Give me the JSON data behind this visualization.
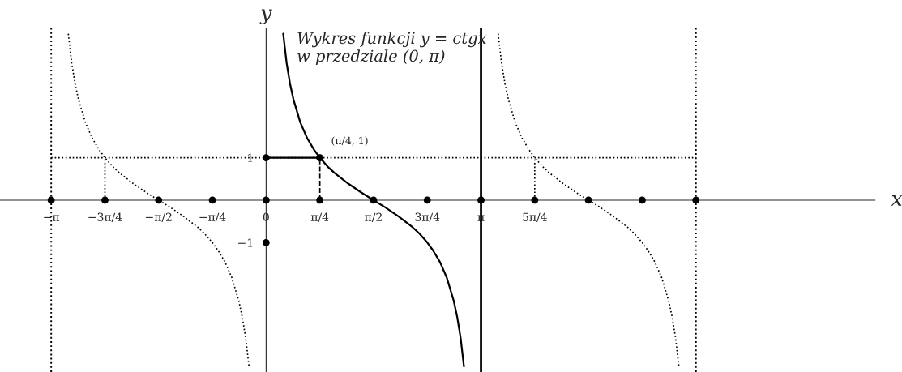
{
  "chart_data": {
    "type": "line",
    "title": "Wykres funkcji y = ctgx\nw przedziale (0, π)",
    "xlabel": "x",
    "ylabel": "y",
    "xlim": [
      -3.89,
      8.9
    ],
    "ylim": [
      -4.05,
      4.05
    ],
    "xticks": [
      {
        "value": -3.1416,
        "label": "−π"
      },
      {
        "value": -2.3562,
        "label": "−3π/4"
      },
      {
        "value": -1.5708,
        "label": "−π/2"
      },
      {
        "value": -0.7854,
        "label": "−π/4"
      },
      {
        "value": 0,
        "label": "0"
      },
      {
        "value": 0.7854,
        "label": "π/4"
      },
      {
        "value": 1.5708,
        "label": "π/2"
      },
      {
        "value": 2.3562,
        "label": "3π/4"
      },
      {
        "value": 3.1416,
        "label": "π"
      },
      {
        "value": 3.927,
        "label": "5π/4"
      }
    ],
    "yticks": [
      {
        "value": 1,
        "label": "1"
      },
      {
        "value": -1,
        "label": "−1"
      }
    ],
    "grid": false,
    "legend": false,
    "series": [
      {
        "type": "line",
        "color": "#000000",
        "line_style": "solid",
        "x": [
          0.25,
          0.3,
          0.35,
          0.4,
          0.5,
          0.6,
          0.7,
          0.785,
          0.9,
          1.0,
          1.2,
          1.4,
          1.5708,
          1.742,
          1.942,
          2.142,
          2.242,
          2.357,
          2.442,
          2.542,
          2.642,
          2.742,
          2.792,
          2.842,
          2.892
        ],
        "values": [
          3.92,
          3.23,
          2.74,
          2.37,
          1.83,
          1.46,
          1.19,
          1.0,
          0.79,
          0.64,
          0.39,
          0.17,
          0,
          -0.17,
          -0.39,
          -0.64,
          -0.79,
          -1.0,
          -1.19,
          -1.46,
          -1.83,
          -2.37,
          -2.74,
          -3.23,
          -3.92
        ]
      },
      {
        "type": "line",
        "color": "#000000",
        "line_style": "dotted",
        "x": [
          -2.892,
          -2.842,
          -2.792,
          -2.742,
          -2.642,
          -2.542,
          -2.442,
          -2.357,
          -2.242,
          -2.142,
          -1.942,
          -1.742,
          -1.5708,
          -1.4,
          -1.2,
          -1.0,
          -0.9,
          -0.785,
          -0.7,
          -0.6,
          -0.5,
          -0.4,
          -0.35,
          -0.3,
          -0.25
        ],
        "values": [
          3.92,
          3.23,
          2.74,
          2.37,
          1.83,
          1.46,
          1.19,
          1.0,
          0.79,
          0.64,
          0.39,
          0.17,
          0,
          -0.17,
          -0.39,
          -0.64,
          -0.79,
          -1.0,
          -1.19,
          -1.46,
          -1.83,
          -2.37,
          -2.74,
          -3.23,
          -3.92
        ]
      },
      {
        "type": "line",
        "color": "#000000",
        "line_style": "dotted",
        "x": [
          3.392,
          3.442,
          3.492,
          3.542,
          3.642,
          3.742,
          3.842,
          3.927,
          4.042,
          4.142,
          4.342,
          4.542,
          4.7124,
          4.884,
          5.084,
          5.284,
          5.384,
          5.498,
          5.584,
          5.684,
          5.784,
          5.884,
          5.934,
          5.984,
          6.034
        ],
        "values": [
          3.92,
          3.23,
          2.74,
          2.37,
          1.83,
          1.46,
          1.19,
          1.0,
          0.79,
          0.64,
          0.39,
          0.17,
          0,
          -0.17,
          -0.39,
          -0.64,
          -0.79,
          -1.0,
          -1.19,
          -1.46,
          -1.83,
          -2.37,
          -2.74,
          -3.23,
          -3.92
        ]
      },
      {
        "type": "line",
        "color": "#000000",
        "line_style": "dotted",
        "x": [
          -3.1416,
          6.2832
        ],
        "values": [
          1,
          1
        ]
      },
      {
        "type": "line",
        "color": "#000000",
        "line_style": "dotted",
        "x": [
          -2.3562,
          -2.3562
        ],
        "values": [
          0,
          1
        ]
      },
      {
        "type": "line",
        "color": "#000000",
        "line_style": "dashed",
        "x": [
          0.7854,
          0.7854
        ],
        "values": [
          0,
          1
        ]
      },
      {
        "type": "line",
        "color": "#000000",
        "line_style": "dotted",
        "x": [
          3.927,
          3.927
        ],
        "values": [
          0,
          1
        ]
      },
      {
        "type": "line",
        "color": "#000000",
        "line_style": "solid",
        "x": [
          0,
          0.7854
        ],
        "values": [
          1,
          1
        ]
      },
      {
        "type": "scatter",
        "color": "#000000",
        "marker": "circle",
        "x": [
          -3.1416,
          -2.3562,
          -1.5708,
          -0.7854,
          0,
          0.7854,
          1.5708,
          2.3562,
          3.1416,
          3.927,
          4.7124,
          5.4978,
          6.2832,
          0,
          0,
          0.7854
        ],
        "values": [
          0,
          0,
          0,
          0,
          0,
          0,
          0,
          0,
          0,
          0,
          0,
          0,
          0,
          1,
          -1,
          1
        ]
      }
    ],
    "ref_lines": [
      {
        "axis": "x",
        "value": -3.1416,
        "line_style": "dotted",
        "color": "#000000"
      },
      {
        "axis": "x",
        "value": 3.1416,
        "line_style": "solid",
        "color": "#000000"
      },
      {
        "axis": "x",
        "value": 6.2832,
        "line_style": "dotted",
        "color": "#000000"
      }
    ],
    "annotations": [
      {
        "text": "(π/4, 1)",
        "x": 0.7854,
        "y": 1
      }
    ]
  }
}
